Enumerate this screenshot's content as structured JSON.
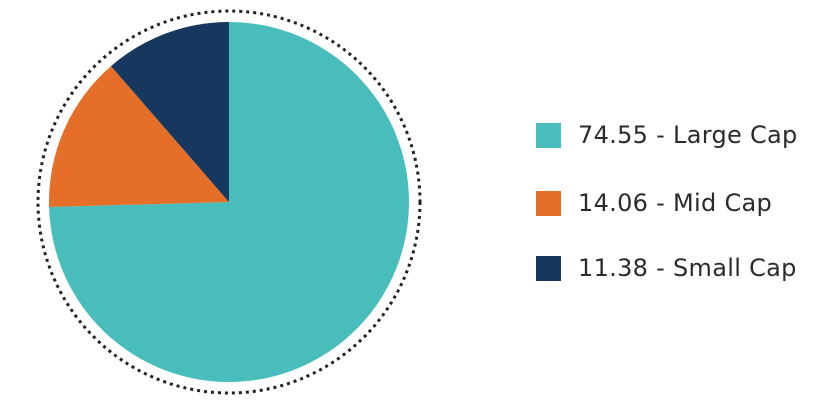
{
  "chart_data": {
    "type": "pie",
    "start": "top",
    "direction": "clockwise",
    "outline": "dotted",
    "legend_placement": "right",
    "slices": [
      {
        "label": "74.55 - Large Cap",
        "value": 74.55,
        "color": "#48BDBC"
      },
      {
        "label": "14.06 - Mid Cap",
        "value": 14.06,
        "color": "#E56F28"
      },
      {
        "label": "11.38 - Small Cap",
        "value": 11.38,
        "color": "#16375E"
      }
    ]
  }
}
